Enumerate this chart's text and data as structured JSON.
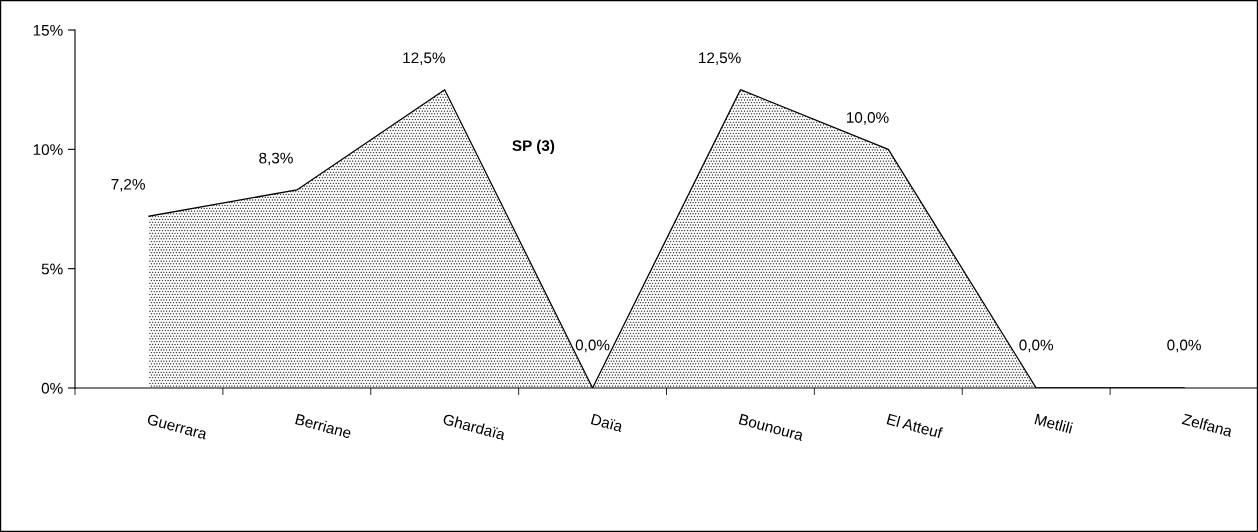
{
  "chart_data": {
    "type": "area",
    "title": "SP (3)",
    "categories": [
      "Guerrara",
      "Berriane",
      "Ghardaïa",
      "Daïa",
      "Bounoura",
      "El Atteuf",
      "Metlili",
      "Zelfana"
    ],
    "values": [
      7.2,
      8.3,
      12.5,
      0,
      12.5,
      10.0,
      0,
      0
    ],
    "value_labels": [
      "7,2%",
      "8,3%",
      "12,5%",
      "0,0%",
      "12,5%",
      "10,0%",
      "0,0%",
      "0,0%"
    ],
    "color": "#000000",
    "ylim": [
      0,
      15
    ],
    "yticks": [
      {
        "value": 0,
        "label": "0%"
      },
      {
        "value": 5,
        "label": "5%"
      },
      {
        "value": 10,
        "label": "10%"
      },
      {
        "value": 15,
        "label": "15%"
      }
    ],
    "grid": false
  }
}
